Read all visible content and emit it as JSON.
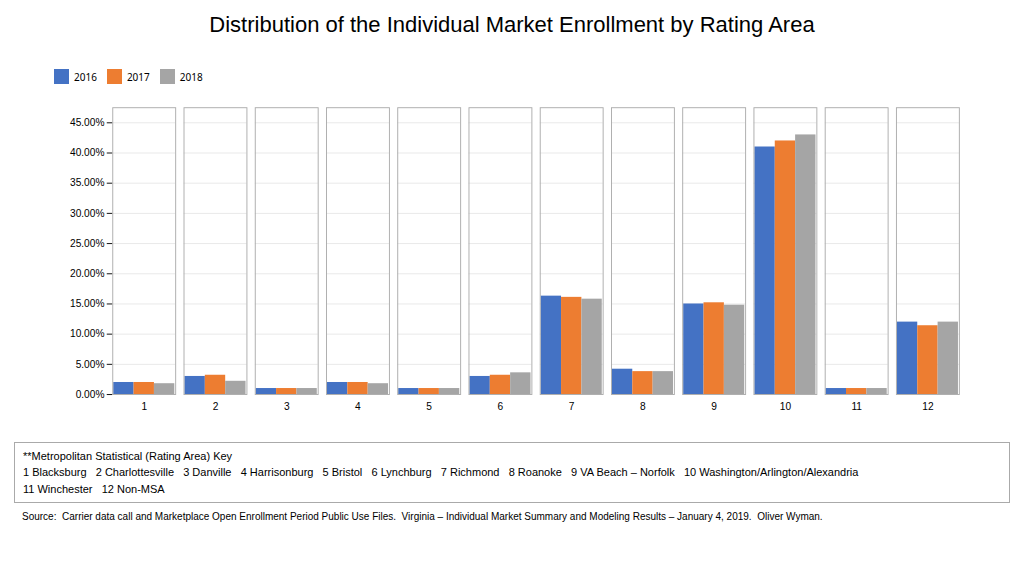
{
  "chart_data": {
    "type": "bar",
    "title": "Distribution of the Individual Market Enrollment by Rating Area",
    "categories": [
      "1",
      "2",
      "3",
      "4",
      "5",
      "6",
      "7",
      "8",
      "9",
      "10",
      "11",
      "12"
    ],
    "series": [
      {
        "name": "2016",
        "color": "#4472C4",
        "values": [
          0.02,
          0.03,
          0.01,
          0.02,
          0.01,
          0.03,
          0.163,
          0.042,
          0.15,
          0.41,
          0.01,
          0.12
        ]
      },
      {
        "name": "2017",
        "color": "#ED7D31",
        "values": [
          0.02,
          0.032,
          0.01,
          0.02,
          0.01,
          0.032,
          0.161,
          0.038,
          0.152,
          0.42,
          0.01,
          0.114
        ]
      },
      {
        "name": "2018",
        "color": "#A5A5A5",
        "values": [
          0.018,
          0.022,
          0.01,
          0.018,
          0.01,
          0.036,
          0.158,
          0.038,
          0.148,
          0.43,
          0.01,
          0.12
        ]
      }
    ],
    "ylim": [
      0,
      0.475
    ],
    "yticks": [
      {
        "value": 0.0,
        "label": "0.00%"
      },
      {
        "value": 0.05,
        "label": "5.00%"
      },
      {
        "value": 0.1,
        "label": "10.00%"
      },
      {
        "value": 0.15,
        "label": "15.00%"
      },
      {
        "value": 0.2,
        "label": "20.00%"
      },
      {
        "value": 0.25,
        "label": "25.00%"
      },
      {
        "value": 0.3,
        "label": "30.00%"
      },
      {
        "value": 0.35,
        "label": "35.00%"
      },
      {
        "value": 0.4,
        "label": "40.00%"
      },
      {
        "value": 0.45,
        "label": "45.00%"
      }
    ],
    "grid": true,
    "legend": "top",
    "annotations": [
      "**Metropolitan Statistical (Rating Area) Key",
      "1 Blacksburg   2 Charlottesville   3 Danville   4 Harrisonburg   5 Bristol   6 Lynchburg   7 Richmond   8 Roanoke   9 VA Beach – Norfolk   10 Washington/Arlington/Alexandria",
      "11 Winchester   12 Non-MSA",
      "Source:  Carrier data call and Marketplace Open Enrollment Period Public Use Files.  Virginia – Individual Market Summary and Modeling Results – January 4, 2019.  Oliver Wyman."
    ]
  }
}
